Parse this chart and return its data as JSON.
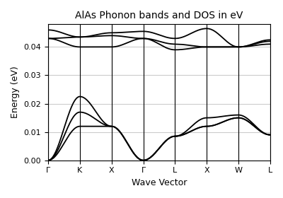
{
  "title": "AlAs Phonon bands and DOS in eV",
  "xlabel": "Wave Vector",
  "ylabel": "Energy (eV)",
  "xtick_labels": [
    "Γ",
    "K",
    "X",
    "Γ",
    "L",
    "X",
    "W",
    "L"
  ],
  "ylim": [
    0.0,
    0.048
  ],
  "yticks": [
    0.0,
    0.01,
    0.02,
    0.03,
    0.04
  ],
  "figsize": [
    4.0,
    2.8
  ],
  "dpi": 100,
  "background_color": "#ffffff",
  "line_color": "#000000",
  "grid_color": "#cccccc",
  "n_segments": 7,
  "pts_per_segment": 60
}
